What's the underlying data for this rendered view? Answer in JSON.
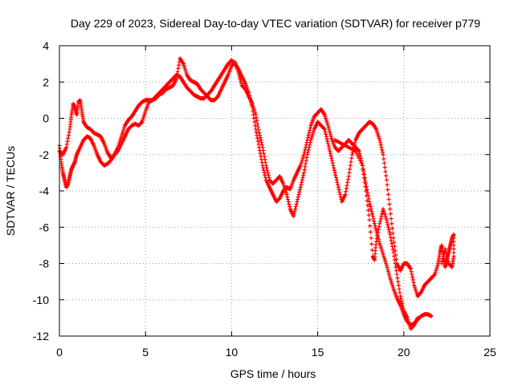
{
  "chart_data": {
    "type": "scatter",
    "title": "Day 229 of 2023, Sidereal Day-to-day VTEC variation (SDTVAR) for receiver p779",
    "xlabel": "GPS time / hours",
    "ylabel": "SDTVAR / TECUs",
    "xlim": [
      0,
      25
    ],
    "ylim": [
      -12,
      4
    ],
    "xticks": [
      "0",
      "5",
      "10",
      "15",
      "20",
      "25"
    ],
    "yticks": [
      "4",
      "2",
      "0",
      "-2",
      "-4",
      "-6",
      "-8",
      "-10",
      "-12"
    ],
    "grid": true,
    "marker": "plus",
    "color": "#ff0000",
    "series": [
      {
        "values": [
          [
            0.0,
            -1.5
          ],
          [
            0.1,
            -2.4
          ],
          [
            0.2,
            -3.0
          ],
          [
            0.3,
            -3.4
          ],
          [
            0.4,
            -3.8
          ],
          [
            0.5,
            -3.6
          ],
          [
            0.6,
            -3.2
          ],
          [
            0.7,
            -2.8
          ],
          [
            0.8,
            -2.6
          ],
          [
            0.9,
            -2.4
          ],
          [
            1.0,
            -2.0
          ],
          [
            1.2,
            -1.6
          ],
          [
            1.4,
            -1.2
          ],
          [
            1.6,
            -1.0
          ],
          [
            1.8,
            -1.1
          ],
          [
            2.0,
            -1.5
          ],
          [
            2.2,
            -2.0
          ],
          [
            2.4,
            -2.4
          ],
          [
            2.6,
            -2.6
          ],
          [
            2.8,
            -2.5
          ],
          [
            3.0,
            -2.3
          ],
          [
            3.2,
            -2.0
          ],
          [
            3.4,
            -1.6
          ],
          [
            3.6,
            -1.0
          ],
          [
            3.8,
            -0.4
          ],
          [
            4.0,
            -0.1
          ],
          [
            4.2,
            0.1
          ],
          [
            4.4,
            0.4
          ],
          [
            4.6,
            0.7
          ],
          [
            4.8,
            0.9
          ],
          [
            5.0,
            1.0
          ],
          [
            5.2,
            1.0
          ],
          [
            5.4,
            1.0
          ],
          [
            5.6,
            1.2
          ],
          [
            5.8,
            1.4
          ],
          [
            6.0,
            1.6
          ],
          [
            6.2,
            1.8
          ],
          [
            6.4,
            2.0
          ],
          [
            6.6,
            2.2
          ],
          [
            6.8,
            2.4
          ],
          [
            7.0,
            2.3
          ],
          [
            7.2,
            2.0
          ],
          [
            7.4,
            1.7
          ],
          [
            7.6,
            1.5
          ],
          [
            7.8,
            1.3
          ],
          [
            8.0,
            1.2
          ],
          [
            8.2,
            1.1
          ],
          [
            8.4,
            1.1
          ],
          [
            8.6,
            1.3
          ],
          [
            8.8,
            1.5
          ],
          [
            9.0,
            1.8
          ],
          [
            9.2,
            2.1
          ],
          [
            9.4,
            2.4
          ],
          [
            9.6,
            2.7
          ],
          [
            9.8,
            3.0
          ],
          [
            10.0,
            3.2
          ],
          [
            10.2,
            3.0
          ],
          [
            10.4,
            2.7
          ],
          [
            10.6,
            2.3
          ],
          [
            10.8,
            1.9
          ],
          [
            11.0,
            1.4
          ],
          [
            11.2,
            0.6
          ],
          [
            11.4,
            -0.6
          ],
          [
            11.6,
            -1.6
          ],
          [
            11.8,
            -2.6
          ],
          [
            12.0,
            -3.4
          ],
          [
            12.2,
            -3.8
          ],
          [
            12.4,
            -4.2
          ],
          [
            12.6,
            -4.6
          ],
          [
            12.8,
            -4.4
          ],
          [
            13.0,
            -4.0
          ],
          [
            13.2,
            -3.8
          ],
          [
            13.4,
            -3.9
          ],
          [
            13.6,
            -3.4
          ],
          [
            13.8,
            -3.0
          ],
          [
            14.0,
            -2.6
          ],
          [
            14.2,
            -2.0
          ],
          [
            14.4,
            -1.2
          ],
          [
            14.6,
            -0.4
          ],
          [
            14.8,
            0.1
          ],
          [
            15.0,
            0.3
          ],
          [
            15.2,
            0.5
          ],
          [
            15.4,
            0.2
          ],
          [
            15.6,
            -0.4
          ],
          [
            15.8,
            -1.1
          ],
          [
            16.0,
            -1.6
          ],
          [
            16.2,
            -1.8
          ],
          [
            16.4,
            -1.6
          ],
          [
            16.6,
            -1.4
          ],
          [
            16.8,
            -1.2
          ],
          [
            17.0,
            -1.4
          ],
          [
            17.2,
            -1.6
          ],
          [
            17.4,
            -1.8
          ],
          [
            17.6,
            -2.6
          ],
          [
            17.8,
            -3.6
          ],
          [
            18.0,
            -4.6
          ],
          [
            18.2,
            -5.4
          ],
          [
            18.4,
            -6.2
          ],
          [
            18.6,
            -6.9
          ],
          [
            18.8,
            -7.5
          ],
          [
            19.0,
            -8.1
          ],
          [
            19.2,
            -8.8
          ],
          [
            19.4,
            -9.4
          ],
          [
            19.6,
            -9.9
          ],
          [
            19.8,
            -10.3
          ],
          [
            20.0,
            -10.8
          ],
          [
            20.2,
            -11.2
          ],
          [
            20.4,
            -11.4
          ],
          [
            20.6,
            -11.3
          ],
          [
            20.8,
            -11.1
          ],
          [
            21.0,
            -10.9
          ],
          [
            21.2,
            -10.8
          ],
          [
            21.4,
            -10.8
          ],
          [
            21.6,
            -10.9
          ]
        ]
      },
      {
        "values": [
          [
            0.0,
            -1.8
          ],
          [
            0.2,
            -2.0
          ],
          [
            0.4,
            -1.6
          ],
          [
            0.6,
            -0.6
          ],
          [
            0.7,
            0.2
          ],
          [
            0.8,
            0.8
          ],
          [
            0.9,
            0.6
          ],
          [
            1.0,
            0.2
          ],
          [
            1.1,
            0.9
          ],
          [
            1.2,
            1.0
          ],
          [
            1.3,
            0.4
          ],
          [
            1.4,
            -0.2
          ],
          [
            1.6,
            -0.5
          ],
          [
            1.8,
            -0.6
          ],
          [
            2.0,
            -0.8
          ],
          [
            2.2,
            -0.9
          ],
          [
            2.4,
            -1.0
          ],
          [
            2.6,
            -1.4
          ],
          [
            2.8,
            -1.9
          ],
          [
            3.0,
            -2.2
          ],
          [
            3.2,
            -2.0
          ],
          [
            3.4,
            -1.8
          ],
          [
            3.6,
            -1.4
          ],
          [
            3.8,
            -1.0
          ],
          [
            4.0,
            -0.6
          ],
          [
            4.2,
            -0.4
          ],
          [
            4.4,
            -0.3
          ],
          [
            4.6,
            -0.4
          ],
          [
            4.8,
            -0.2
          ],
          [
            5.0,
            0.4
          ],
          [
            5.2,
            0.9
          ],
          [
            5.4,
            1.0
          ],
          [
            5.6,
            1.1
          ],
          [
            5.8,
            1.3
          ],
          [
            6.0,
            1.4
          ],
          [
            6.2,
            1.6
          ],
          [
            6.4,
            1.7
          ],
          [
            6.6,
            1.8
          ],
          [
            6.8,
            2.2
          ],
          [
            7.0,
            3.3
          ],
          [
            7.2,
            3.0
          ],
          [
            7.4,
            2.4
          ],
          [
            7.6,
            2.1
          ],
          [
            7.8,
            2.0
          ],
          [
            8.0,
            1.9
          ],
          [
            8.2,
            1.6
          ],
          [
            8.4,
            1.4
          ],
          [
            8.6,
            1.2
          ],
          [
            8.8,
            1.0
          ],
          [
            9.0,
            1.0
          ],
          [
            9.2,
            1.2
          ],
          [
            9.4,
            1.6
          ],
          [
            9.6,
            2.0
          ],
          [
            9.8,
            2.4
          ],
          [
            10.0,
            2.9
          ],
          [
            10.2,
            3.1
          ],
          [
            10.4,
            2.5
          ],
          [
            10.6,
            1.8
          ],
          [
            10.8,
            1.6
          ],
          [
            11.0,
            1.2
          ],
          [
            11.2,
            0.8
          ],
          [
            11.4,
            0.2
          ],
          [
            11.6,
            -0.8
          ],
          [
            11.8,
            -1.6
          ],
          [
            12.0,
            -2.6
          ],
          [
            12.2,
            -3.4
          ],
          [
            12.4,
            -3.6
          ],
          [
            12.6,
            -3.4
          ],
          [
            12.8,
            -3.2
          ],
          [
            13.0,
            -3.6
          ],
          [
            13.2,
            -4.2
          ],
          [
            13.4,
            -5.0
          ],
          [
            13.6,
            -5.4
          ],
          [
            13.8,
            -4.6
          ],
          [
            14.0,
            -3.8
          ],
          [
            14.2,
            -3.0
          ],
          [
            14.4,
            -2.0
          ],
          [
            14.6,
            -1.2
          ],
          [
            14.8,
            -0.6
          ],
          [
            15.0,
            -0.2
          ],
          [
            15.2,
            -0.4
          ],
          [
            15.4,
            -0.6
          ],
          [
            15.6,
            -1.4
          ],
          [
            15.8,
            -2.2
          ],
          [
            16.0,
            -3.0
          ],
          [
            16.2,
            -3.8
          ],
          [
            16.4,
            -4.6
          ],
          [
            16.6,
            -4.2
          ],
          [
            16.8,
            -3.2
          ],
          [
            17.0,
            -2.0
          ],
          [
            17.2,
            -1.2
          ],
          [
            17.4,
            -0.8
          ],
          [
            17.6,
            -0.6
          ],
          [
            17.8,
            -0.4
          ],
          [
            18.0,
            -0.2
          ],
          [
            18.2,
            -0.3
          ],
          [
            18.4,
            -0.6
          ],
          [
            18.6,
            -1.2
          ],
          [
            18.8,
            -2.0
          ],
          [
            19.0,
            -3.4
          ],
          [
            19.2,
            -5.0
          ],
          [
            19.4,
            -6.6
          ],
          [
            19.6,
            -8.0
          ],
          [
            19.8,
            -8.4
          ],
          [
            20.0,
            -8.0
          ],
          [
            20.2,
            -8.0
          ],
          [
            20.4,
            -8.3
          ],
          [
            20.6,
            -9.2
          ],
          [
            20.8,
            -9.8
          ],
          [
            21.0,
            -9.6
          ],
          [
            21.2,
            -9.2
          ],
          [
            21.4,
            -9.0
          ],
          [
            21.6,
            -8.8
          ],
          [
            21.8,
            -8.6
          ]
        ]
      },
      {
        "values": [
          [
            16.0,
            -1.2
          ],
          [
            16.4,
            -1.4
          ],
          [
            16.8,
            -1.6
          ],
          [
            17.2,
            -1.8
          ],
          [
            17.6,
            -2.6
          ],
          [
            17.8,
            -4.0
          ],
          [
            18.0,
            -5.6
          ],
          [
            18.2,
            -7.6
          ],
          [
            18.3,
            -7.8
          ],
          [
            18.4,
            -6.8
          ],
          [
            18.6,
            -5.8
          ],
          [
            18.8,
            -5.0
          ],
          [
            19.0,
            -5.6
          ],
          [
            19.2,
            -6.4
          ],
          [
            19.4,
            -7.4
          ],
          [
            19.6,
            -8.6
          ],
          [
            19.8,
            -9.8
          ],
          [
            20.0,
            -10.6
          ],
          [
            20.2,
            -11.0
          ],
          [
            20.4,
            -11.6
          ],
          [
            20.6,
            -11.4
          ],
          [
            20.8,
            -11.0
          ]
        ]
      },
      {
        "values": [
          [
            21.8,
            -8.6
          ],
          [
            22.0,
            -8.0
          ],
          [
            22.1,
            -7.4
          ],
          [
            22.2,
            -7.0
          ],
          [
            22.3,
            -7.6
          ],
          [
            22.4,
            -8.2
          ],
          [
            22.5,
            -7.8
          ],
          [
            22.6,
            -7.4
          ],
          [
            22.7,
            -7.0
          ],
          [
            22.8,
            -6.6
          ],
          [
            22.9,
            -6.4
          ],
          [
            22.9,
            -7.6
          ],
          [
            22.8,
            -8.2
          ],
          [
            22.6,
            -8.0
          ],
          [
            22.4,
            -7.2
          ],
          [
            22.2,
            -8.0
          ]
        ]
      }
    ]
  }
}
